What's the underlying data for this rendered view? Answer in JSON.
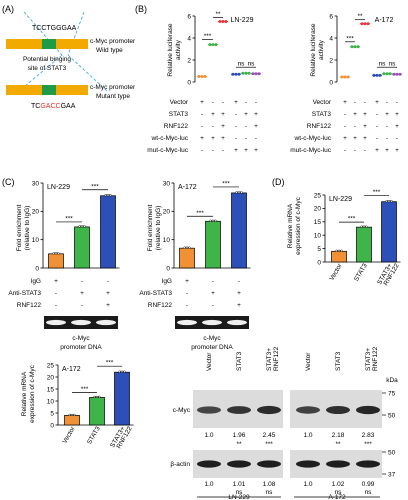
{
  "panels": {
    "a": "(A)",
    "b": "(B)",
    "c": "(C)",
    "d": "(D)"
  },
  "colors": {
    "orange": "#f29035",
    "green": "#3fb449",
    "red": "#e8373f",
    "purple": "#9b52b5",
    "blue": "#2c4fb8",
    "cmyc_green": "#1f9b48",
    "gold": "#f2a900",
    "mutant_red": "#e3302a"
  },
  "panel_a": {
    "wt_seq": "TCCTGGGAA",
    "wt_label": [
      "c-Myc promoter",
      "Wild type"
    ],
    "binding_label": [
      "Potential binging",
      "site of STAT3"
    ],
    "mut_seq": [
      "TC",
      "GACC",
      "GAA"
    ],
    "mut_label": [
      "c-Myc promoter",
      "Mutant type"
    ]
  },
  "panel_b": {
    "ylabel": [
      "Relative luciferase",
      "activity"
    ],
    "row_labels": [
      "Vector",
      "STAT3",
      "RNF122",
      "wt-c-Myc-luc",
      "mut-c-Myc-luc"
    ],
    "signs": [
      [
        "+",
        "-",
        "-",
        "+",
        "-",
        "-"
      ],
      [
        "-",
        "+",
        "+",
        "-",
        "+",
        "+"
      ],
      [
        "-",
        "-",
        "+",
        "-",
        "-",
        "+"
      ],
      [
        "+",
        "+",
        "+",
        "-",
        "-",
        "-"
      ],
      [
        "-",
        "-",
        "-",
        "+",
        "+",
        "+"
      ]
    ],
    "sig": [
      "***",
      "**",
      "ns",
      "ns"
    ]
  },
  "panel_c": {
    "ylabel": [
      "Fold enrichment",
      "(relative to IgG)"
    ],
    "row_labels": [
      "IgG",
      "Anti-STAT3",
      "RNF122"
    ],
    "signs": [
      [
        "+",
        "-",
        "-"
      ],
      [
        "-",
        "+",
        "+"
      ],
      [
        "-",
        "-",
        "+"
      ]
    ],
    "dna_label": [
      "c-Myc",
      "promoter DNA"
    ],
    "sig": [
      "***",
      "***"
    ]
  },
  "panel_d": {
    "ylabel": [
      "Relative mRNA",
      "expression of c-Myc"
    ],
    "categories": [
      "Vector",
      "STAT3",
      "STAT3+",
      "RNF122"
    ],
    "sig": [
      "***",
      "***"
    ]
  },
  "blot": {
    "lanes": [
      "Vector",
      "STAT3",
      "STAT3+ RNF122",
      "Vector",
      "STAT3",
      "STAT3+ RNF122"
    ],
    "kda": "kDa",
    "row1_label": "c-Myc",
    "row1_markers": [
      "75",
      "50"
    ],
    "row1_values": [
      "1.0",
      "1.96",
      "2.45",
      "1.0",
      "2.18",
      "2.83"
    ],
    "row1_sig": [
      "",
      "**",
      "***",
      "",
      "**",
      "***"
    ],
    "row2_label": "β-actin",
    "row2_markers": [
      "50",
      "37"
    ],
    "row2_values": [
      "1.0",
      "1.01",
      "1.08",
      "1.0",
      "1.02",
      "0.99"
    ],
    "row2_sig": [
      "",
      "ns",
      "ns",
      "",
      "ns",
      "ns"
    ],
    "groups": [
      "LN-229",
      "A-172"
    ]
  },
  "chart_data": [
    {
      "id": "b_ln229",
      "type": "scatter",
      "title": "LN-229",
      "ylim": [
        0,
        6
      ],
      "yticks": [
        0,
        2,
        4,
        6
      ],
      "series": [
        {
          "values": [
            0.5,
            3.4,
            5.5,
            0.7,
            0.8,
            0.75
          ]
        }
      ]
    },
    {
      "id": "b_a172",
      "type": "scatter",
      "title": "A-172",
      "ylim": [
        0,
        6
      ],
      "yticks": [
        0,
        2,
        4,
        6
      ],
      "series": [
        {
          "values": [
            0.45,
            3.2,
            5.3,
            0.6,
            0.75,
            0.7
          ]
        }
      ]
    },
    {
      "id": "c_ln229",
      "type": "bar",
      "title": "LN-229",
      "ylim": [
        0,
        30
      ],
      "yticks": [
        0,
        10,
        20,
        30
      ],
      "values": [
        5,
        14.5,
        25.5
      ],
      "colors": [
        "#f29035",
        "#3fb449",
        "#2c4fb8"
      ]
    },
    {
      "id": "c_a172",
      "type": "bar",
      "title": "A-172",
      "ylim": [
        0,
        30
      ],
      "yticks": [
        0,
        10,
        20,
        30
      ],
      "values": [
        7,
        16.5,
        26.5
      ],
      "colors": [
        "#f29035",
        "#3fb449",
        "#2c4fb8"
      ]
    },
    {
      "id": "d_ln229",
      "type": "bar",
      "title": "LN-229",
      "ylim": [
        0,
        25
      ],
      "yticks": [
        0,
        5,
        10,
        15,
        20,
        25
      ],
      "categories": [
        "Vector",
        "STAT3",
        "STAT3+ RNF122"
      ],
      "values": [
        4,
        13,
        22.5
      ],
      "colors": [
        "#f29035",
        "#3fb449",
        "#2c4fb8"
      ]
    },
    {
      "id": "e_a172",
      "type": "bar",
      "title": "A-172",
      "ylim": [
        0,
        25
      ],
      "yticks": [
        0,
        5,
        10,
        15,
        20,
        25
      ],
      "categories": [
        "Vector",
        "STAT3",
        "STAT3+ RNF122"
      ],
      "values": [
        4,
        11.5,
        22
      ],
      "colors": [
        "#f29035",
        "#3fb449",
        "#2c4fb8"
      ]
    }
  ]
}
